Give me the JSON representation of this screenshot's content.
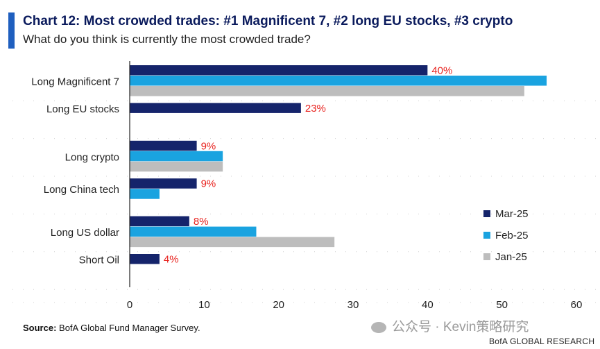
{
  "header": {
    "title": "Chart 12: Most crowded trades: #1 Magnificent 7, #2 long EU stocks, #3 crypto",
    "subtitle": "What do you think is currently the most crowded trade?"
  },
  "footer": {
    "source_label": "Source:",
    "source_text": " BofA Global Fund Manager Survey.",
    "watermark": "公众号 · Kevin策略研究",
    "brand": "BofA GLOBAL RESEARCH"
  },
  "colors": {
    "accent": "#1f5fbf",
    "title": "#0a1a5c",
    "mar25": "#15246b",
    "feb25": "#1aa3e0",
    "jan25": "#bdbdbd",
    "data_label": "#e8231f"
  },
  "chart_data": {
    "type": "bar",
    "orientation": "horizontal",
    "categories": [
      "Long Magnificent 7",
      "Long EU stocks",
      "Long crypto",
      "Long China tech",
      "Long US dollar",
      "Short Oil"
    ],
    "series": [
      {
        "name": "Mar-25",
        "color": "#15246b",
        "values": [
          40,
          23,
          9,
          9,
          8,
          4
        ]
      },
      {
        "name": "Feb-25",
        "color": "#1aa3e0",
        "values": [
          56,
          null,
          12.5,
          4,
          17,
          null
        ]
      },
      {
        "name": "Jan-25",
        "color": "#bdbdbd",
        "values": [
          53,
          null,
          12.5,
          null,
          27.5,
          null
        ]
      }
    ],
    "data_labels": [
      "40%",
      "23%",
      "9%",
      "9%",
      "8%",
      "4%"
    ],
    "xlim": [
      0,
      60
    ],
    "xticks": [
      "0",
      "10",
      "20",
      "30",
      "40",
      "50",
      "60"
    ],
    "legend_position": "right",
    "grid": false
  }
}
